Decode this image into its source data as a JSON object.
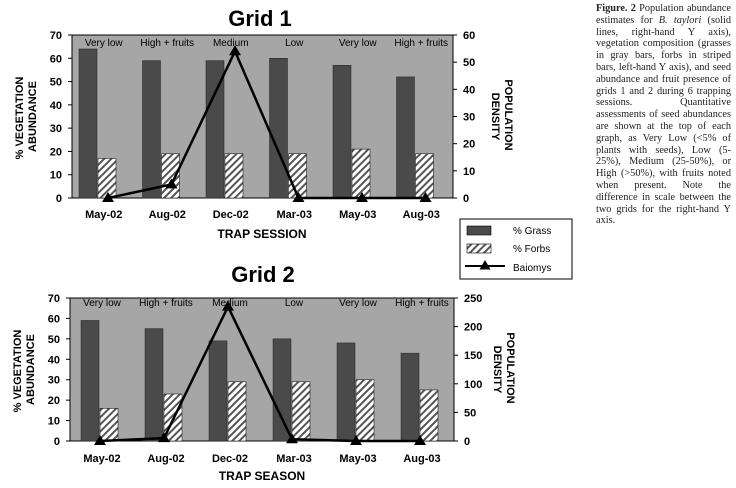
{
  "caption": {
    "label": "Figure. 2",
    "species": "B. taylori",
    "part1": " Population abundance estimates for ",
    "part2": " (solid lines, right-hand Y axis), vegetation composition (grasses in gray bars, forbs in striped bars, left-hand Y axis), and seed abundance and fruit presence of grids 1 and 2 during 6 trapping sessions. Quantitative assessments of seed abundances are shown at the top of each graph, as Very Low (<5% of plants with seeds), Low (5-25%), Medium (25-50%), or High (>50%), with fruits noted when present. Note the difference in scale between the two grids for the right-hand Y axis."
  },
  "legend": {
    "grass": "% Grass",
    "forbs": "% Forbs",
    "baiomys": "Baiomys"
  },
  "colors": {
    "plot_bg": "#a6a6a6",
    "grass": "#4a4a4a",
    "forbs_fill": "#ffffff",
    "forbs_stripe": "#555555",
    "line": "#000000"
  },
  "chart_data": [
    {
      "type": "bar",
      "title": "Grid 1",
      "categories": [
        "May-02",
        "Aug-02",
        "Dec-02",
        "Mar-03",
        "May-03",
        "Aug-03"
      ],
      "seed_labels": [
        "Very low",
        "High + fruits",
        "Medium",
        "Low",
        "Very low",
        "High + fruits"
      ],
      "series": [
        {
          "name": "% Grass",
          "axis": "left",
          "values": [
            64,
            59,
            59,
            60,
            57,
            52
          ]
        },
        {
          "name": "% Forbs",
          "axis": "left",
          "values": [
            17,
            19,
            19,
            19,
            21,
            19
          ]
        },
        {
          "name": "Baiomys",
          "axis": "right",
          "kind": "line",
          "values": [
            0,
            5,
            54,
            0,
            0,
            0
          ]
        }
      ],
      "xlabel": "TRAP SESSION",
      "ylabel_left": "% VEGETATION ABUNDANCE",
      "ylabel_right": "POPULATION DENSITY",
      "ylim_left": [
        0,
        70
      ],
      "ylim_right": [
        0,
        60
      ],
      "yticks_left": [
        0,
        10,
        20,
        30,
        40,
        50,
        60,
        70
      ],
      "yticks_right": [
        0,
        10,
        20,
        30,
        40,
        50,
        60
      ]
    },
    {
      "type": "bar",
      "title": "Grid 2",
      "categories": [
        "May-02",
        "Aug-02",
        "Dec-02",
        "Mar-03",
        "May-03",
        "Aug-03"
      ],
      "seed_labels": [
        "Very low",
        "High + fruits",
        "Medium",
        "Low",
        "Very low",
        "High + fruits"
      ],
      "series": [
        {
          "name": "% Grass",
          "axis": "left",
          "values": [
            59,
            55,
            49,
            50,
            48,
            43
          ]
        },
        {
          "name": "% Forbs",
          "axis": "left",
          "values": [
            16,
            23,
            29,
            29,
            30,
            25
          ]
        },
        {
          "name": "Baiomys",
          "axis": "right",
          "kind": "line",
          "values": [
            0,
            5,
            235,
            3,
            0,
            0
          ]
        }
      ],
      "xlabel": "TRAP SEASON",
      "ylabel_left": "% VEGETATION ABUNDANCE",
      "ylabel_right": "POPULATION DENSITY",
      "ylim_left": [
        0,
        70
      ],
      "ylim_right": [
        0,
        250
      ],
      "yticks_left": [
        0,
        10,
        20,
        30,
        40,
        50,
        60,
        70
      ],
      "yticks_right": [
        0,
        50,
        100,
        150,
        200,
        250
      ]
    }
  ]
}
